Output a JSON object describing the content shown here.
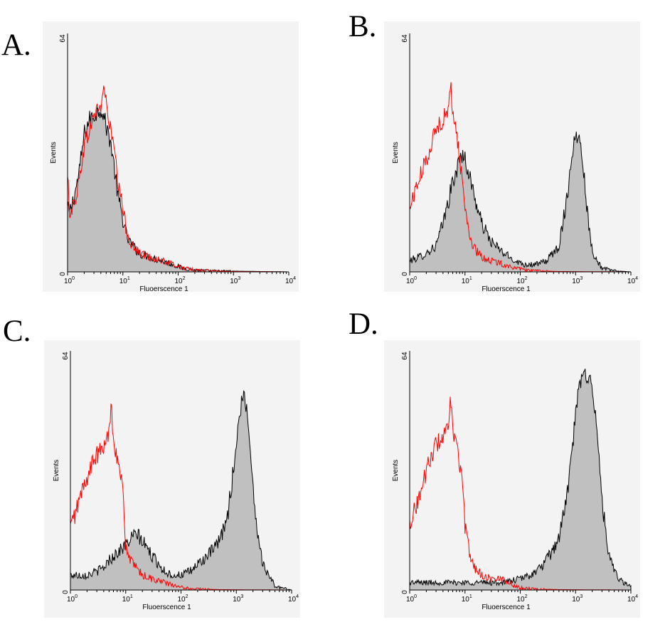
{
  "colors": {
    "control_line": "#ff0000",
    "sample_fill": "#c0c0c0",
    "sample_line": "#000000",
    "axis": "#000000"
  },
  "chart_data": [
    {
      "panel": "A.",
      "type": "area",
      "xlabel": "Fluoerscence 1",
      "ylabel": "Events",
      "x_scale": "log",
      "xlim": [
        1,
        10000
      ],
      "ylim": [
        0,
        64
      ],
      "x_ticks": [
        "10",
        "10",
        "10",
        "10",
        "10"
      ],
      "x_tick_exponents": [
        "0",
        "1",
        "2",
        "3",
        "4"
      ],
      "y_ticks": [
        "0",
        "64"
      ],
      "series": [
        {
          "style": "filled-gray",
          "x": [
            1,
            1.1,
            1.3,
            1.6,
            2,
            2.5,
            3,
            3.5,
            4,
            4.5,
            5,
            6,
            7,
            8,
            10,
            12,
            15,
            20,
            30,
            50,
            80,
            120,
            200,
            400,
            1000,
            10000
          ],
          "y": [
            17,
            16,
            20,
            26,
            37,
            41,
            42,
            43,
            44,
            42,
            39,
            35,
            28,
            21,
            14,
            9,
            7,
            5,
            4,
            3,
            2,
            1,
            0.5,
            0.3,
            0.2,
            0
          ]
        },
        {
          "style": "red-line",
          "x": [
            1,
            1.1,
            1.3,
            1.6,
            2,
            2.5,
            3,
            3.5,
            4,
            4.5,
            5,
            6,
            7,
            8,
            10,
            12,
            15,
            20,
            30,
            50,
            80,
            120,
            200,
            400,
            1000,
            10000
          ],
          "y": [
            25,
            16,
            18,
            24,
            34,
            38,
            42,
            44,
            44,
            50,
            45,
            38,
            33,
            24,
            17,
            10,
            7,
            5,
            4,
            3,
            2,
            1,
            0.5,
            0.3,
            0.1,
            0
          ]
        }
      ]
    },
    {
      "panel": "B.",
      "type": "area",
      "xlabel": "Fluoerscence 1",
      "ylabel": "Events",
      "x_scale": "log",
      "xlim": [
        1,
        10000
      ],
      "ylim": [
        0,
        64
      ],
      "x_ticks": [
        "10",
        "10",
        "10",
        "10",
        "10"
      ],
      "x_tick_exponents": [
        "0",
        "1",
        "2",
        "3",
        "4"
      ],
      "y_ticks": [
        "0",
        "64"
      ],
      "series": [
        {
          "style": "filled-gray",
          "x": [
            1,
            1.5,
            2,
            3,
            4,
            5,
            6,
            7,
            8,
            9,
            10,
            12,
            15,
            20,
            30,
            50,
            80,
            120,
            200,
            300,
            500,
            700,
            900,
            1100,
            1300,
            1500,
            1800,
            2200,
            3000,
            5000,
            10000
          ],
          "y": [
            3,
            4,
            5,
            7,
            13,
            19,
            24,
            27,
            30,
            32,
            30,
            26,
            20,
            13,
            8,
            5,
            3,
            2,
            2,
            3,
            7,
            20,
            34,
            37,
            33,
            22,
            10,
            4,
            1,
            0.3,
            0
          ]
        },
        {
          "style": "red-line",
          "x": [
            1,
            1.2,
            1.5,
            2,
            2.5,
            3,
            3.5,
            4,
            4.5,
            5,
            5.5,
            6,
            7,
            8,
            9,
            10,
            12,
            15,
            20,
            30,
            50,
            80,
            120,
            200,
            500,
            10000
          ],
          "y": [
            17,
            21,
            25,
            30,
            35,
            38,
            40,
            41,
            42,
            43,
            50,
            43,
            38,
            30,
            24,
            18,
            10,
            6,
            4,
            3,
            2,
            1,
            0.5,
            0.3,
            0.1,
            0
          ]
        }
      ]
    },
    {
      "panel": "C.",
      "type": "area",
      "xlabel": "Fluoerscence 1",
      "ylabel": "Events",
      "x_scale": "log",
      "xlim": [
        1,
        10000
      ],
      "ylim": [
        0,
        64
      ],
      "x_ticks": [
        "10",
        "10",
        "10",
        "10",
        "10"
      ],
      "x_tick_exponents": [
        "0",
        "1",
        "2",
        "3",
        "4"
      ],
      "y_ticks": [
        "0",
        "64"
      ],
      "series": [
        {
          "style": "filled-gray",
          "x": [
            1,
            1.5,
            2,
            3,
            4,
            5,
            7,
            10,
            13,
            16,
            20,
            25,
            30,
            40,
            50,
            70,
            100,
            150,
            200,
            300,
            500,
            700,
            900,
            1100,
            1300,
            1500,
            1800,
            2200,
            3000,
            5000,
            10000
          ],
          "y": [
            4,
            4,
            4,
            5,
            6,
            8,
            10,
            12,
            14,
            15,
            13,
            11,
            9,
            7,
            5,
            4,
            4,
            5,
            7,
            9,
            13,
            20,
            33,
            45,
            52,
            50,
            38,
            20,
            7,
            1,
            0
          ]
        },
        {
          "style": "red-line",
          "x": [
            1,
            1.2,
            1.5,
            2,
            2.5,
            3,
            3.5,
            4,
            4.5,
            5,
            5.5,
            6,
            7,
            8,
            9,
            10,
            12,
            15,
            20,
            30,
            50,
            80,
            120,
            200,
            500,
            10000
          ],
          "y": [
            17,
            20,
            25,
            30,
            34,
            36,
            37,
            38,
            40,
            43,
            50,
            40,
            36,
            30,
            26,
            12,
            8,
            6,
            4,
            3,
            2,
            1,
            0.5,
            0.3,
            0.1,
            0
          ]
        }
      ]
    },
    {
      "panel": "D.",
      "type": "area",
      "xlabel": "Fluoerscence 1",
      "ylabel": "Events",
      "x_scale": "log",
      "xlim": [
        1,
        10000
      ],
      "ylim": [
        0,
        64
      ],
      "x_ticks": [
        "10",
        "10",
        "10",
        "10",
        "10"
      ],
      "x_tick_exponents": [
        "0",
        "1",
        "2",
        "3",
        "4"
      ],
      "y_ticks": [
        "0",
        "64"
      ],
      "series": [
        {
          "style": "filled-gray",
          "x": [
            1,
            2,
            5,
            10,
            20,
            50,
            100,
            150,
            200,
            300,
            400,
            500,
            700,
            900,
            1100,
            1300,
            1600,
            2000,
            2500,
            3000,
            3500,
            4000,
            5000,
            7000,
            10000
          ],
          "y": [
            2,
            2,
            2,
            2,
            2,
            2,
            3,
            4,
            5,
            8,
            11,
            14,
            25,
            40,
            52,
            57,
            58,
            55,
            40,
            25,
            15,
            9,
            5,
            2,
            1
          ]
        },
        {
          "style": "red-line",
          "x": [
            1,
            1.2,
            1.5,
            2,
            2.5,
            3,
            3.5,
            4,
            4.5,
            5,
            5.5,
            6,
            7,
            8,
            9,
            10,
            12,
            15,
            20,
            30,
            50,
            80,
            120,
            200,
            500,
            10000
          ],
          "y": [
            18,
            21,
            25,
            32,
            36,
            39,
            40,
            41,
            42,
            43,
            51,
            43,
            39,
            34,
            28,
            17,
            10,
            6,
            4,
            3,
            3,
            1,
            0.5,
            0.3,
            0.1,
            0
          ]
        }
      ]
    }
  ]
}
